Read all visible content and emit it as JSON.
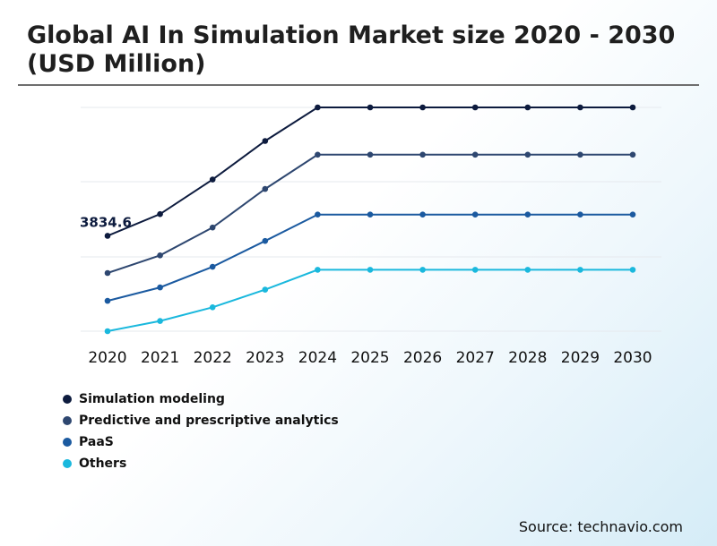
{
  "title": "Global AI In Simulation Market size 2020 - 2030 (USD Million)",
  "source": "Source: technavio.com",
  "chart_data": {
    "type": "line",
    "x": [
      "2020",
      "2021",
      "2022",
      "2023",
      "2024",
      "2025",
      "2026",
      "2027",
      "2028",
      "2029",
      "2030"
    ],
    "ylim": [
      0,
      9000
    ],
    "grid": true,
    "legend": "bottom-left",
    "annotations": [
      {
        "series": 0,
        "x": "2020",
        "text": "3834.6"
      }
    ],
    "series": [
      {
        "name": "Simulation modeling",
        "color": "#0d1b3e",
        "values": [
          3834.6,
          4710,
          6100,
          7650,
          9000,
          9000,
          9000,
          9000,
          9000,
          9000,
          9000
        ]
      },
      {
        "name": "Predictive and prescriptive analytics",
        "color": "#2e4770",
        "values": [
          2340,
          3050,
          4170,
          5720,
          7100,
          7100,
          7100,
          7100,
          7100,
          7100,
          7100
        ]
      },
      {
        "name": "PaaS",
        "color": "#1b5aa0",
        "values": [
          1220,
          1760,
          2590,
          3630,
          4690,
          4690,
          4690,
          4690,
          4690,
          4690,
          4690
        ]
      },
      {
        "name": "Others",
        "color": "#1ab8dd",
        "values": [
          0,
          410,
          960,
          1670,
          2470,
          2470,
          2470,
          2470,
          2470,
          2470,
          2470
        ]
      }
    ]
  }
}
